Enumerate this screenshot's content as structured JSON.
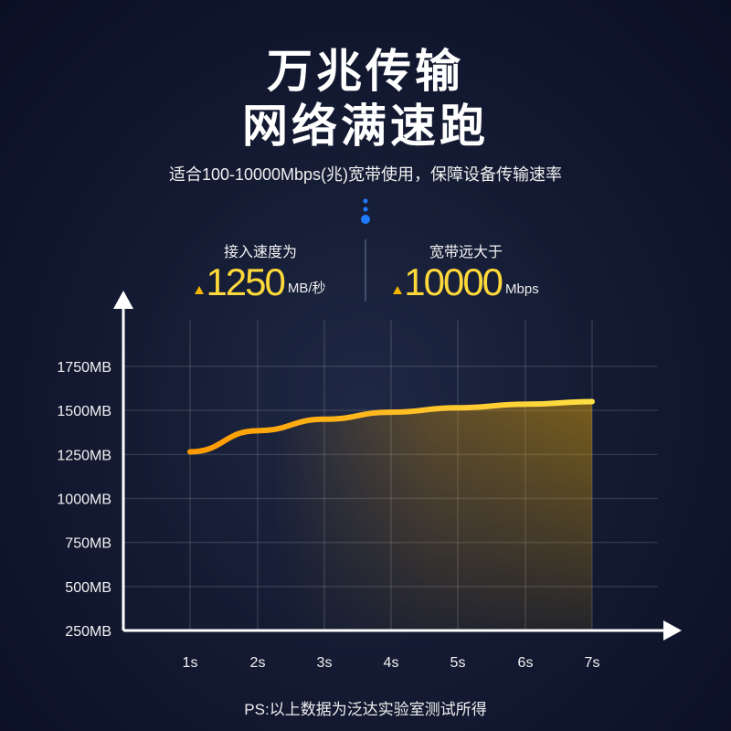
{
  "header": {
    "title_line1": "万兆传输",
    "title_line2": "网络满速跑",
    "subtitle": "适合100-10000Mbps(兆)宽带使用，保障设备传输速率"
  },
  "stats": [
    {
      "label": "接入速度为",
      "value": "1250",
      "unit": "MB/秒"
    },
    {
      "label": "宽带远大于",
      "value": "10000",
      "unit": "Mbps"
    }
  ],
  "footnote": "PS:以上数据为泛达实验室测试所得",
  "colors": {
    "line_start": "#ff9a00",
    "line_end": "#ffe045",
    "value_text": "#ffd83a",
    "accent_dot": "#1e7bff"
  },
  "chart_data": {
    "type": "line",
    "categories": [
      "1s",
      "2s",
      "3s",
      "4s",
      "5s",
      "6s",
      "7s"
    ],
    "values": [
      1265,
      1385,
      1450,
      1490,
      1515,
      1535,
      1550
    ],
    "yticks": [
      "250MB",
      "500MB",
      "750MB",
      "1000MB",
      "1250MB",
      "1500MB",
      "1750MB"
    ],
    "ytick_values": [
      250,
      500,
      750,
      1000,
      1250,
      1500,
      1750
    ],
    "ylim": [
      250,
      1750
    ],
    "grid": true,
    "area_fill": true
  }
}
